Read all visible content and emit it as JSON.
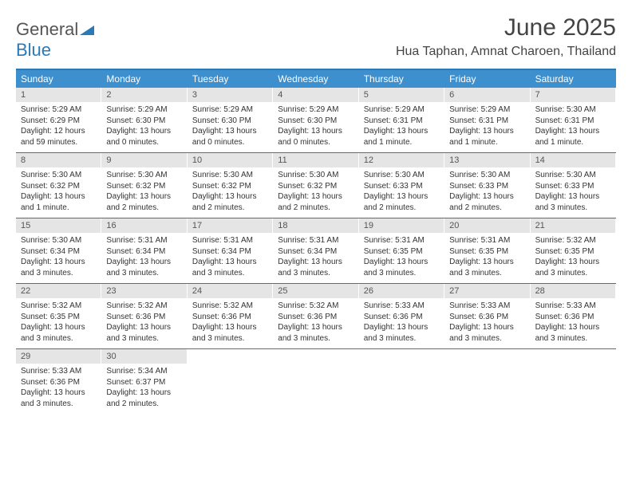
{
  "logo": {
    "general": "General",
    "blue": "Blue"
  },
  "title": "June 2025",
  "location": "Hua Taphan, Amnat Charoen, Thailand",
  "colors": {
    "header_bar": "#3d8fce",
    "border": "#2a7ab8",
    "daynum_bg": "#e5e5e5",
    "text": "#333333",
    "logo_gray": "#555555",
    "logo_blue": "#2a7ab8",
    "background": "#ffffff"
  },
  "typography": {
    "title_fontsize": 30,
    "location_fontsize": 16,
    "dow_fontsize": 12,
    "daynum_fontsize": 11,
    "detail_fontsize": 10
  },
  "day_names": [
    "Sunday",
    "Monday",
    "Tuesday",
    "Wednesday",
    "Thursday",
    "Friday",
    "Saturday"
  ],
  "weeks": [
    [
      {
        "num": "1",
        "sunrise": "Sunrise: 5:29 AM",
        "sunset": "Sunset: 6:29 PM",
        "day1": "Daylight: 12 hours",
        "day2": "and 59 minutes."
      },
      {
        "num": "2",
        "sunrise": "Sunrise: 5:29 AM",
        "sunset": "Sunset: 6:30 PM",
        "day1": "Daylight: 13 hours",
        "day2": "and 0 minutes."
      },
      {
        "num": "3",
        "sunrise": "Sunrise: 5:29 AM",
        "sunset": "Sunset: 6:30 PM",
        "day1": "Daylight: 13 hours",
        "day2": "and 0 minutes."
      },
      {
        "num": "4",
        "sunrise": "Sunrise: 5:29 AM",
        "sunset": "Sunset: 6:30 PM",
        "day1": "Daylight: 13 hours",
        "day2": "and 0 minutes."
      },
      {
        "num": "5",
        "sunrise": "Sunrise: 5:29 AM",
        "sunset": "Sunset: 6:31 PM",
        "day1": "Daylight: 13 hours",
        "day2": "and 1 minute."
      },
      {
        "num": "6",
        "sunrise": "Sunrise: 5:29 AM",
        "sunset": "Sunset: 6:31 PM",
        "day1": "Daylight: 13 hours",
        "day2": "and 1 minute."
      },
      {
        "num": "7",
        "sunrise": "Sunrise: 5:30 AM",
        "sunset": "Sunset: 6:31 PM",
        "day1": "Daylight: 13 hours",
        "day2": "and 1 minute."
      }
    ],
    [
      {
        "num": "8",
        "sunrise": "Sunrise: 5:30 AM",
        "sunset": "Sunset: 6:32 PM",
        "day1": "Daylight: 13 hours",
        "day2": "and 1 minute."
      },
      {
        "num": "9",
        "sunrise": "Sunrise: 5:30 AM",
        "sunset": "Sunset: 6:32 PM",
        "day1": "Daylight: 13 hours",
        "day2": "and 2 minutes."
      },
      {
        "num": "10",
        "sunrise": "Sunrise: 5:30 AM",
        "sunset": "Sunset: 6:32 PM",
        "day1": "Daylight: 13 hours",
        "day2": "and 2 minutes."
      },
      {
        "num": "11",
        "sunrise": "Sunrise: 5:30 AM",
        "sunset": "Sunset: 6:32 PM",
        "day1": "Daylight: 13 hours",
        "day2": "and 2 minutes."
      },
      {
        "num": "12",
        "sunrise": "Sunrise: 5:30 AM",
        "sunset": "Sunset: 6:33 PM",
        "day1": "Daylight: 13 hours",
        "day2": "and 2 minutes."
      },
      {
        "num": "13",
        "sunrise": "Sunrise: 5:30 AM",
        "sunset": "Sunset: 6:33 PM",
        "day1": "Daylight: 13 hours",
        "day2": "and 2 minutes."
      },
      {
        "num": "14",
        "sunrise": "Sunrise: 5:30 AM",
        "sunset": "Sunset: 6:33 PM",
        "day1": "Daylight: 13 hours",
        "day2": "and 3 minutes."
      }
    ],
    [
      {
        "num": "15",
        "sunrise": "Sunrise: 5:30 AM",
        "sunset": "Sunset: 6:34 PM",
        "day1": "Daylight: 13 hours",
        "day2": "and 3 minutes."
      },
      {
        "num": "16",
        "sunrise": "Sunrise: 5:31 AM",
        "sunset": "Sunset: 6:34 PM",
        "day1": "Daylight: 13 hours",
        "day2": "and 3 minutes."
      },
      {
        "num": "17",
        "sunrise": "Sunrise: 5:31 AM",
        "sunset": "Sunset: 6:34 PM",
        "day1": "Daylight: 13 hours",
        "day2": "and 3 minutes."
      },
      {
        "num": "18",
        "sunrise": "Sunrise: 5:31 AM",
        "sunset": "Sunset: 6:34 PM",
        "day1": "Daylight: 13 hours",
        "day2": "and 3 minutes."
      },
      {
        "num": "19",
        "sunrise": "Sunrise: 5:31 AM",
        "sunset": "Sunset: 6:35 PM",
        "day1": "Daylight: 13 hours",
        "day2": "and 3 minutes."
      },
      {
        "num": "20",
        "sunrise": "Sunrise: 5:31 AM",
        "sunset": "Sunset: 6:35 PM",
        "day1": "Daylight: 13 hours",
        "day2": "and 3 minutes."
      },
      {
        "num": "21",
        "sunrise": "Sunrise: 5:32 AM",
        "sunset": "Sunset: 6:35 PM",
        "day1": "Daylight: 13 hours",
        "day2": "and 3 minutes."
      }
    ],
    [
      {
        "num": "22",
        "sunrise": "Sunrise: 5:32 AM",
        "sunset": "Sunset: 6:35 PM",
        "day1": "Daylight: 13 hours",
        "day2": "and 3 minutes."
      },
      {
        "num": "23",
        "sunrise": "Sunrise: 5:32 AM",
        "sunset": "Sunset: 6:36 PM",
        "day1": "Daylight: 13 hours",
        "day2": "and 3 minutes."
      },
      {
        "num": "24",
        "sunrise": "Sunrise: 5:32 AM",
        "sunset": "Sunset: 6:36 PM",
        "day1": "Daylight: 13 hours",
        "day2": "and 3 minutes."
      },
      {
        "num": "25",
        "sunrise": "Sunrise: 5:32 AM",
        "sunset": "Sunset: 6:36 PM",
        "day1": "Daylight: 13 hours",
        "day2": "and 3 minutes."
      },
      {
        "num": "26",
        "sunrise": "Sunrise: 5:33 AM",
        "sunset": "Sunset: 6:36 PM",
        "day1": "Daylight: 13 hours",
        "day2": "and 3 minutes."
      },
      {
        "num": "27",
        "sunrise": "Sunrise: 5:33 AM",
        "sunset": "Sunset: 6:36 PM",
        "day1": "Daylight: 13 hours",
        "day2": "and 3 minutes."
      },
      {
        "num": "28",
        "sunrise": "Sunrise: 5:33 AM",
        "sunset": "Sunset: 6:36 PM",
        "day1": "Daylight: 13 hours",
        "day2": "and 3 minutes."
      }
    ],
    [
      {
        "num": "29",
        "sunrise": "Sunrise: 5:33 AM",
        "sunset": "Sunset: 6:36 PM",
        "day1": "Daylight: 13 hours",
        "day2": "and 3 minutes."
      },
      {
        "num": "30",
        "sunrise": "Sunrise: 5:34 AM",
        "sunset": "Sunset: 6:37 PM",
        "day1": "Daylight: 13 hours",
        "day2": "and 2 minutes."
      },
      null,
      null,
      null,
      null,
      null
    ]
  ]
}
